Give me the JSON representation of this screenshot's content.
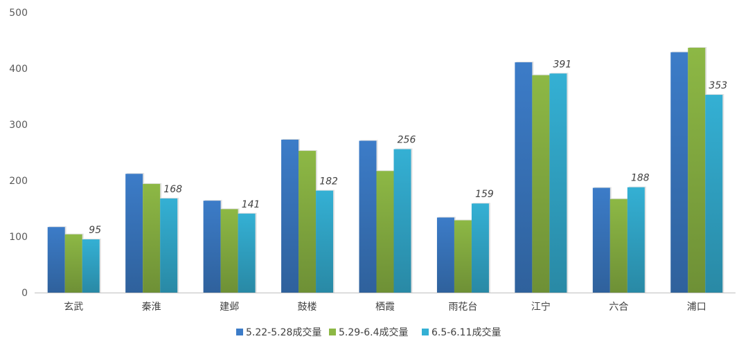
{
  "chart_data": {
    "type": "bar",
    "categories": [
      "玄武",
      "秦淮",
      "建邺",
      "鼓楼",
      "栖霞",
      "雨花台",
      "江宁",
      "六合",
      "浦口"
    ],
    "series": [
      {
        "name": "5.22-5.28成交量",
        "values": [
          117,
          212,
          164,
          273,
          271,
          134,
          411,
          187,
          429
        ],
        "color": "#3c7cc8"
      },
      {
        "name": "5.29-6.4成交量",
        "values": [
          104,
          194,
          149,
          253,
          217,
          129,
          388,
          167,
          437
        ],
        "color": "#8db845"
      },
      {
        "name": "6.5-6.11成交量",
        "values": [
          95,
          168,
          141,
          182,
          256,
          159,
          391,
          188,
          353
        ],
        "color": "#34b0d4"
      }
    ],
    "data_labels_series": 2,
    "yticks": [
      0,
      100,
      200,
      300,
      400,
      500
    ],
    "ylim": [
      0,
      500
    ],
    "grid": false,
    "legend_position": "bottom"
  }
}
